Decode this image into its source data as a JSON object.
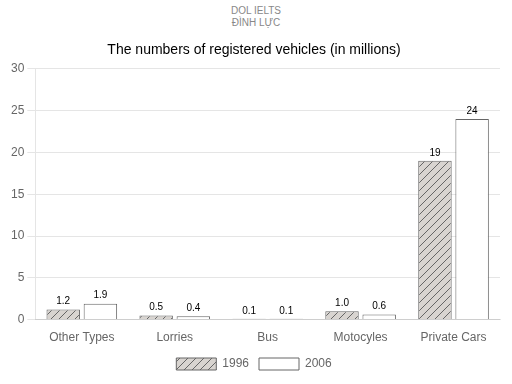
{
  "chart_data": {
    "type": "bar",
    "title": "The numbers of registered vehicles (in millions)",
    "annotations": [
      "DOL IELTS",
      "ĐÌNH LỰC"
    ],
    "categories": [
      "Other Types",
      "Lorries",
      "Bus",
      "Motocyles",
      "Private Cars"
    ],
    "series": [
      {
        "name": "1996",
        "color": "#d8d4d0",
        "values": [
          1.2,
          0.5,
          0.1,
          1.0,
          19
        ],
        "value_labels": [
          "1.2",
          "0.5",
          "0.1",
          "1.0",
          "19"
        ]
      },
      {
        "name": "2006",
        "color": "#ffffff",
        "values": [
          1.9,
          0.4,
          0.1,
          0.6,
          24
        ],
        "value_labels": [
          "1.9",
          "0.4",
          "0.1",
          "0.6",
          "24"
        ]
      }
    ],
    "ylim": [
      0,
      30
    ],
    "yticks": [
      0,
      5,
      10,
      15,
      20,
      25,
      30
    ],
    "grid": true,
    "legend": "bottom",
    "data_labels": true
  }
}
